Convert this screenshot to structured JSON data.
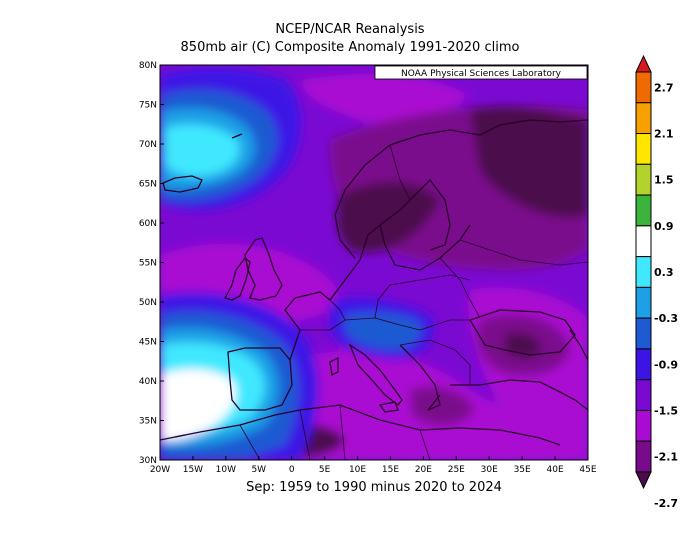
{
  "title": "NCEP/NCAR Reanalysis",
  "subtitle": "850mb air (C) Composite Anomaly 1991-2020 climo",
  "footer": "Sep: 1959 to 1990 minus 2020 to 2024",
  "credit": "NOAA Physical Sciences Laboratory",
  "map": {
    "region": "Europe / North Atlantic",
    "lon_range": [
      -20,
      45
    ],
    "lat_range": [
      30,
      80
    ],
    "lon_ticks": [
      "20W",
      "15W",
      "10W",
      "5W",
      "0",
      "5E",
      "10E",
      "15E",
      "20E",
      "25E",
      "30E",
      "35E",
      "40E",
      "45E"
    ],
    "lat_ticks": [
      "30N",
      "35N",
      "40N",
      "45N",
      "50N",
      "55N",
      "60N",
      "65N",
      "70N",
      "75N",
      "80N"
    ]
  },
  "colorbar": {
    "labels": [
      "2.7",
      "2.1",
      "1.5",
      "0.9",
      "0.3",
      "-0.3",
      "-0.9",
      "-1.5",
      "-2.1",
      "-2.7"
    ],
    "colors": [
      "#d7191c",
      "#ef6a00",
      "#f8a000",
      "#ffe600",
      "#b4d22c",
      "#3cb43c",
      "#ffffff",
      "#3fe8ff",
      "#1ea0e6",
      "#1e5ad2",
      "#3c14e6",
      "#7a0ad2",
      "#aa0ad2",
      "#7a0a8c",
      "#4b0a4b"
    ]
  }
}
